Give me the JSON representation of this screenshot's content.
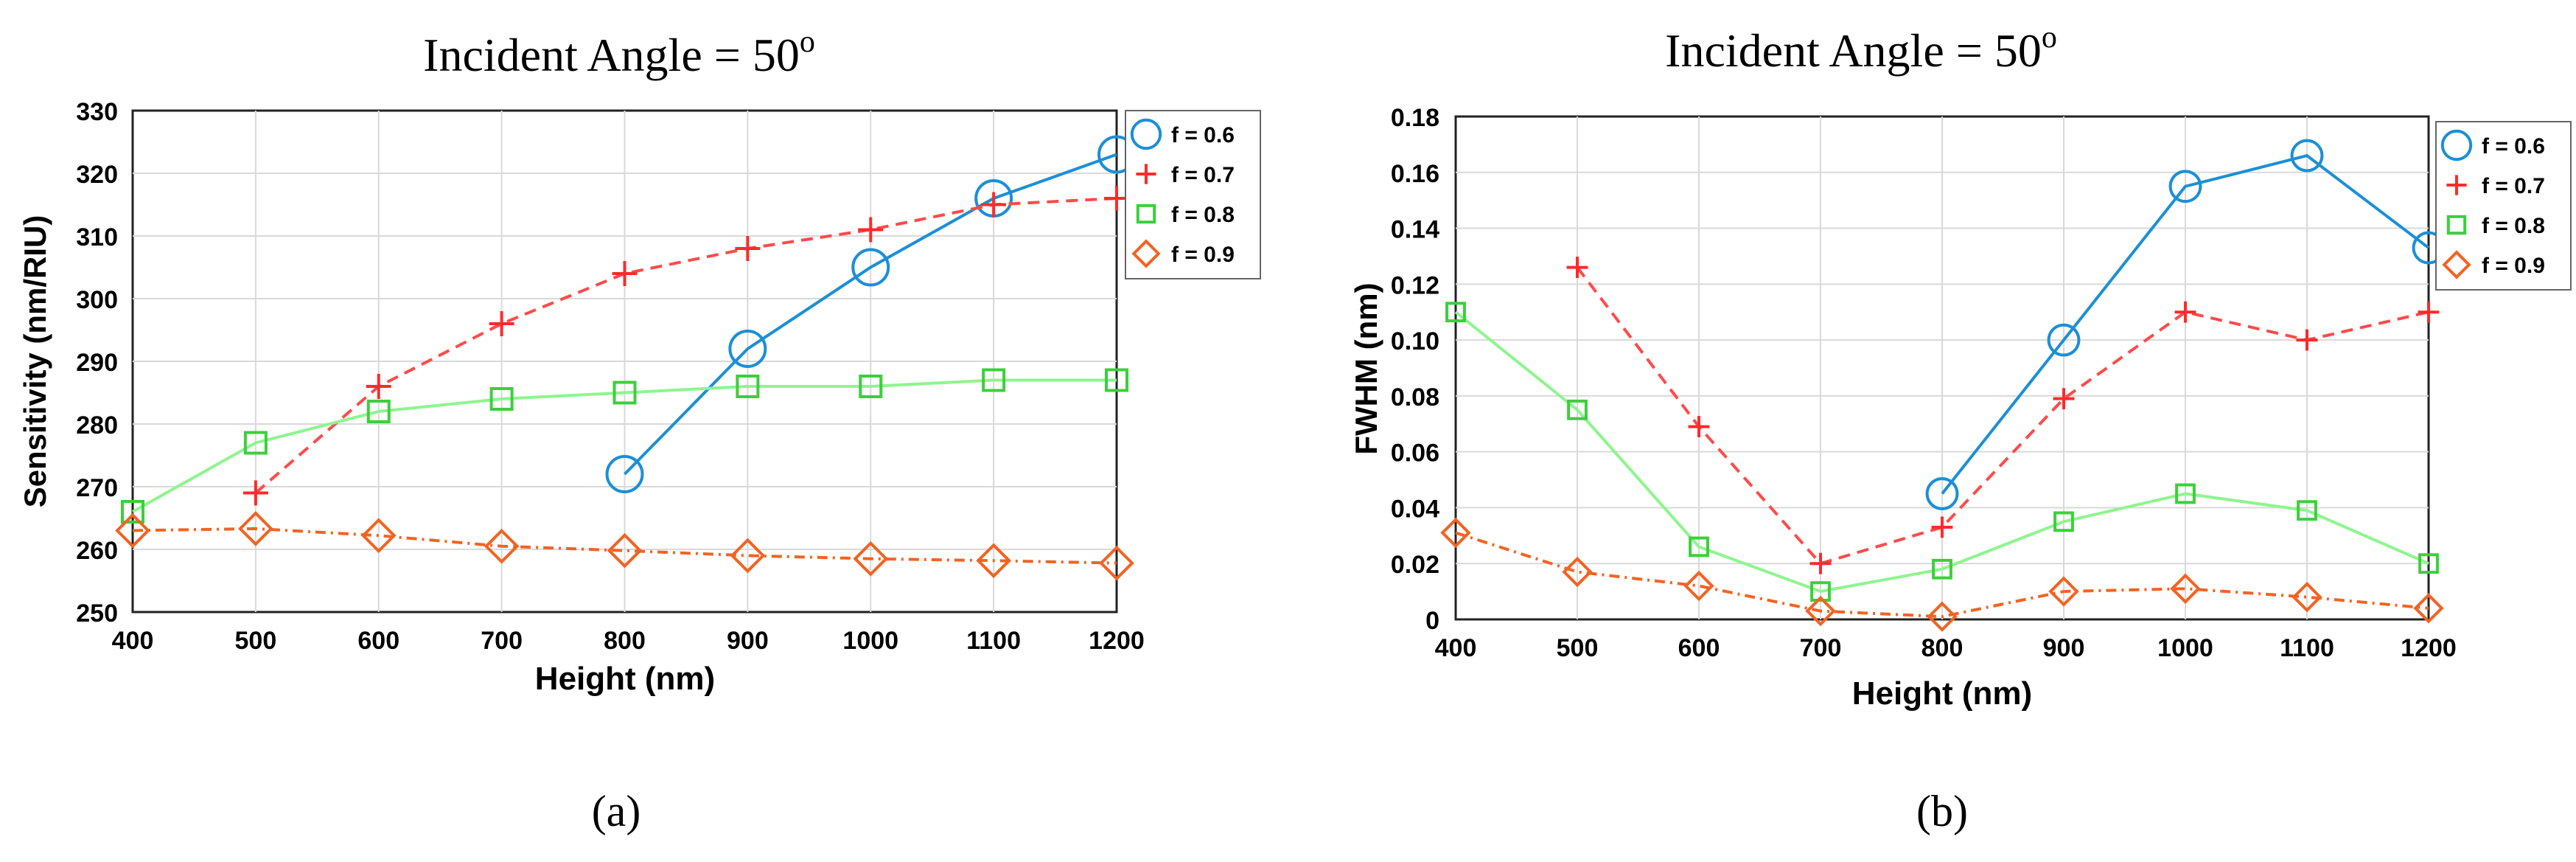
{
  "colors": {
    "f06": "#1c8fd6",
    "f07": "#ff2a2a",
    "f08": "#3ccf3c",
    "f09": "#f26322",
    "f06_line": "#1c8fd6",
    "f07_line": "#ff4a4a",
    "f08_line": "#8ef58e",
    "f09_line": "#f26322"
  },
  "chart_data": [
    {
      "type": "line",
      "panel_label": "(a)",
      "title": "Incident Angle = 50",
      "title_superscript": "o",
      "xlabel": "Height (nm)",
      "ylabel": "Sensitivity (nm/RIU)",
      "xlim": [
        400,
        1200
      ],
      "ylim": [
        250,
        330
      ],
      "xticks": [
        400,
        500,
        600,
        700,
        800,
        900,
        1000,
        1100,
        1200
      ],
      "yticks": [
        250,
        260,
        270,
        280,
        290,
        300,
        310,
        320,
        330
      ],
      "ytick_labels": [
        "250",
        "260",
        "270",
        "280",
        "290",
        "300",
        "310",
        "320",
        "330"
      ],
      "legend_placement": "top-right outside",
      "series": [
        {
          "name": "f = 0.6",
          "key": "f06",
          "marker": "circle",
          "dash": "solid",
          "x": [
            800,
            900,
            1000,
            1100,
            1200
          ],
          "y": [
            272,
            292,
            305,
            316,
            323
          ]
        },
        {
          "name": "f = 0.7",
          "key": "f07",
          "marker": "plus",
          "dash": "dashed",
          "x": [
            500,
            600,
            700,
            800,
            900,
            1000,
            1100,
            1200
          ],
          "y": [
            269,
            286,
            296,
            304,
            308,
            311,
            315,
            316
          ]
        },
        {
          "name": "f = 0.8",
          "key": "f08",
          "marker": "square",
          "dash": "solid",
          "x": [
            400,
            500,
            600,
            700,
            800,
            900,
            1000,
            1100,
            1200
          ],
          "y": [
            266,
            277,
            282,
            284,
            285,
            286,
            286,
            287,
            287
          ]
        },
        {
          "name": "f = 0.9",
          "key": "f09",
          "marker": "diamond",
          "dash": "dashdot",
          "x": [
            400,
            500,
            600,
            700,
            800,
            900,
            1000,
            1100,
            1200
          ],
          "y": [
            263,
            263.3,
            262.2,
            260.5,
            259.8,
            259,
            258.5,
            258.2,
            257.8
          ]
        }
      ]
    },
    {
      "type": "line",
      "panel_label": "(b)",
      "title": "Incident Angle = 50",
      "title_superscript": "o",
      "xlabel": "Height (nm)",
      "ylabel": "FWHM (nm)",
      "xlim": [
        400,
        1200
      ],
      "ylim": [
        0,
        0.18
      ],
      "xticks": [
        400,
        500,
        600,
        700,
        800,
        900,
        1000,
        1100,
        1200
      ],
      "yticks": [
        0,
        0.02,
        0.04,
        0.06,
        0.08,
        0.1,
        0.12,
        0.14,
        0.16,
        0.18
      ],
      "ytick_labels": [
        "0",
        "0.02",
        "0.04",
        "0.06",
        "0.08",
        "0.10",
        "0.12",
        "0.14",
        "0.16",
        "0.18"
      ],
      "legend_placement": "top-right outside",
      "series": [
        {
          "name": "f = 0.6",
          "key": "f06",
          "marker": "circle",
          "dash": "solid",
          "x": [
            800,
            900,
            1000,
            1100,
            1200
          ],
          "y": [
            0.045,
            0.1,
            0.155,
            0.166,
            0.133
          ]
        },
        {
          "name": "f = 0.7",
          "key": "f07",
          "marker": "plus",
          "dash": "dashed",
          "x": [
            500,
            600,
            700,
            800,
            900,
            1000,
            1100,
            1200
          ],
          "y": [
            0.126,
            0.069,
            0.02,
            0.033,
            0.079,
            0.11,
            0.1,
            0.11
          ]
        },
        {
          "name": "f = 0.8",
          "key": "f08",
          "marker": "square",
          "dash": "solid",
          "x": [
            400,
            500,
            600,
            700,
            800,
            900,
            1000,
            1100,
            1200
          ],
          "y": [
            0.11,
            0.075,
            0.026,
            0.01,
            0.018,
            0.035,
            0.045,
            0.039,
            0.02
          ]
        },
        {
          "name": "f = 0.9",
          "key": "f09",
          "marker": "diamond",
          "dash": "dashdot",
          "x": [
            400,
            500,
            600,
            700,
            800,
            900,
            1000,
            1100,
            1200
          ],
          "y": [
            0.031,
            0.017,
            0.012,
            0.003,
            0.001,
            0.01,
            0.011,
            0.008,
            0.004
          ]
        }
      ]
    }
  ]
}
